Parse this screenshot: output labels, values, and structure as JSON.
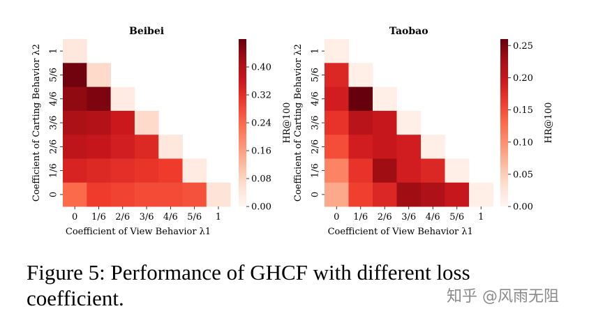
{
  "chart_data": [
    {
      "type": "heatmap",
      "title": "Beibei",
      "xlabel": "Coefficient of View Behavior λ1",
      "ylabel": "Coefficient of Carting Behavior λ2",
      "x_categories": [
        "0",
        "1/6",
        "2/6",
        "3/6",
        "4/6",
        "5/6",
        "1"
      ],
      "y_categories": [
        "1",
        "5/6",
        "4/6",
        "3/6",
        "2/6",
        "1/6",
        "0"
      ],
      "values": [
        [
          0.04,
          null,
          null,
          null,
          null,
          null,
          null
        ],
        [
          0.47,
          0.07,
          null,
          null,
          null,
          null,
          null
        ],
        [
          0.44,
          0.46,
          0.03,
          null,
          null,
          null,
          null
        ],
        [
          0.41,
          0.4,
          0.36,
          0.07,
          null,
          null,
          null
        ],
        [
          0.38,
          0.37,
          0.35,
          0.33,
          0.04,
          null,
          null
        ],
        [
          0.34,
          0.33,
          0.32,
          0.31,
          0.3,
          0.03,
          null
        ],
        [
          0.24,
          0.3,
          0.29,
          0.28,
          0.28,
          0.27,
          0.05
        ]
      ],
      "vmin": 0,
      "vmax": 0.48,
      "colorbar": {
        "label": "HR@100",
        "ticks": [
          "0.00",
          "0.08",
          "0.16",
          "0.24",
          "0.32",
          "0.40"
        ],
        "tick_values": [
          0,
          0.08,
          0.16,
          0.24,
          0.32,
          0.4
        ]
      }
    },
    {
      "type": "heatmap",
      "title": "Taobao",
      "xlabel": "Coefficient of View Behavior λ1",
      "ylabel": "Coefficient of Carting Behavior λ2",
      "x_categories": [
        "0",
        "1/6",
        "2/6",
        "3/6",
        "4/6",
        "5/6",
        "1"
      ],
      "y_categories": [
        "1",
        "5/6",
        "4/6",
        "3/6",
        "2/6",
        "1/6",
        "0"
      ],
      "values": [
        [
          0.01,
          null,
          null,
          null,
          null,
          null,
          null
        ],
        [
          0.18,
          0.01,
          null,
          null,
          null,
          null,
          null
        ],
        [
          0.19,
          0.26,
          0.01,
          null,
          null,
          null,
          null
        ],
        [
          0.17,
          0.21,
          0.2,
          0.01,
          null,
          null,
          null
        ],
        [
          0.15,
          0.19,
          0.2,
          0.19,
          0.01,
          null,
          null
        ],
        [
          0.11,
          0.17,
          0.23,
          0.19,
          0.18,
          0.01,
          null
        ],
        [
          0.08,
          0.16,
          0.18,
          0.23,
          0.22,
          0.2,
          0.01
        ]
      ],
      "vmin": 0,
      "vmax": 0.26,
      "colorbar": {
        "label": "HR@100",
        "ticks": [
          "0.00",
          "0.05",
          "0.10",
          "0.15",
          "0.20",
          "0.25"
        ],
        "tick_values": [
          0,
          0.05,
          0.1,
          0.15,
          0.2,
          0.25
        ]
      }
    }
  ],
  "caption": "Figure 5: Performance of GHCF with different loss coefficient.",
  "watermark": "知乎 @风雨无阻"
}
